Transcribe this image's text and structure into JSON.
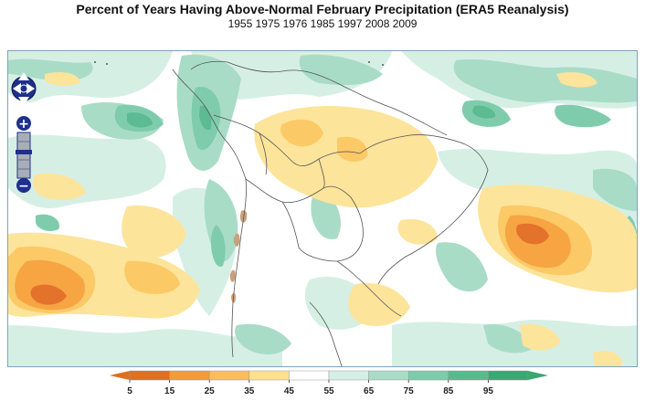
{
  "title": "Percent of Years Having Above-Normal February Precipitation (ERA5 Reanalysis)",
  "subtitle": "1955 1975 1976 1985 1997 2008 2009",
  "map_controls": {
    "pan": "pan-control",
    "zoom_in": "+",
    "zoom_out": "−"
  },
  "legend": {
    "ticks": [
      "5",
      "15",
      "25",
      "35",
      "45",
      "55",
      "65",
      "75",
      "85",
      "95"
    ],
    "colors": [
      "#e07020",
      "#f59a35",
      "#f9be5a",
      "#fde090",
      "#ffffff",
      "#d5efe6",
      "#a8dcc6",
      "#7ccbaa",
      "#58b98c",
      "#3ba873"
    ]
  },
  "colors": {
    "orange_dark": "#e3722a",
    "orange": "#f7a443",
    "orange_light": "#fbc966",
    "yellow": "#fde49b",
    "white": "#ffffff",
    "green_pale": "#d6efe5",
    "green_light": "#a9dcc7",
    "green": "#7fccac",
    "green_dark": "#5cbb90",
    "brown_terrain": "#c9a07a"
  }
}
